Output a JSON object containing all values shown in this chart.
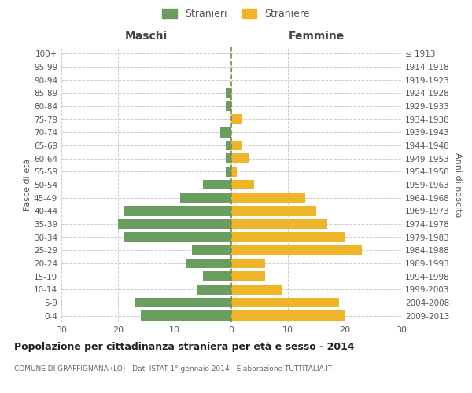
{
  "age_groups": [
    "0-4",
    "5-9",
    "10-14",
    "15-19",
    "20-24",
    "25-29",
    "30-34",
    "35-39",
    "40-44",
    "45-49",
    "50-54",
    "55-59",
    "60-64",
    "65-69",
    "70-74",
    "75-79",
    "80-84",
    "85-89",
    "90-94",
    "95-99",
    "100+"
  ],
  "birth_years": [
    "2009-2013",
    "2004-2008",
    "1999-2003",
    "1994-1998",
    "1989-1993",
    "1984-1988",
    "1979-1983",
    "1974-1978",
    "1969-1973",
    "1964-1968",
    "1959-1963",
    "1954-1958",
    "1949-1953",
    "1944-1948",
    "1939-1943",
    "1934-1938",
    "1929-1933",
    "1924-1928",
    "1919-1923",
    "1914-1918",
    "≤ 1913"
  ],
  "maschi": [
    16,
    17,
    6,
    5,
    8,
    7,
    19,
    20,
    19,
    9,
    5,
    1,
    1,
    1,
    2,
    0,
    1,
    1,
    0,
    0,
    0
  ],
  "femmine": [
    20,
    19,
    9,
    6,
    6,
    23,
    20,
    17,
    15,
    13,
    4,
    1,
    3,
    2,
    0,
    2,
    0,
    0,
    0,
    0,
    0
  ],
  "color_maschi": "#6a9e5e",
  "color_femmine": "#f0b429",
  "title": "Popolazione per cittadinanza straniera per età e sesso - 2014",
  "subtitle": "COMUNE DI GRAFFIGNANA (LO) - Dati ISTAT 1° gennaio 2014 - Elaborazione TUTTITALIA.IT",
  "xlabel_left": "Maschi",
  "xlabel_right": "Femmine",
  "ylabel_left": "Fasce di età",
  "ylabel_right": "Anni di nascita",
  "legend_maschi": "Stranieri",
  "legend_femmine": "Straniere",
  "xlim": 30,
  "background_color": "#ffffff",
  "grid_color": "#cccccc",
  "bar_height": 0.75
}
